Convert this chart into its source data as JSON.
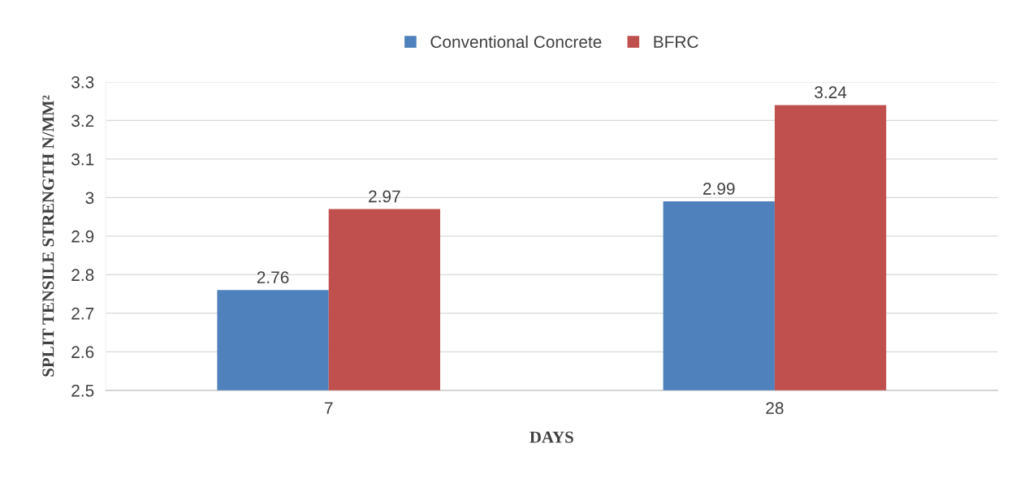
{
  "chart_data": {
    "type": "bar",
    "xlabel": "DAYS",
    "ylabel": "SPLIT TENSILE STRENGTH N/MM²",
    "categories": [
      "7",
      "28"
    ],
    "series": [
      {
        "name": "Conventional Concrete",
        "color": "#4f81bd",
        "values": [
          2.76,
          2.99
        ]
      },
      {
        "name": "BFRC",
        "color": "#c0504d",
        "values": [
          2.97,
          3.24
        ]
      }
    ],
    "ylim": [
      2.5,
      3.3
    ],
    "yticks": [
      2.5,
      2.6,
      2.7,
      2.8,
      2.9,
      3,
      3.1,
      3.2,
      3.3
    ],
    "grid": "y",
    "legend": "top",
    "data_labels": true
  }
}
